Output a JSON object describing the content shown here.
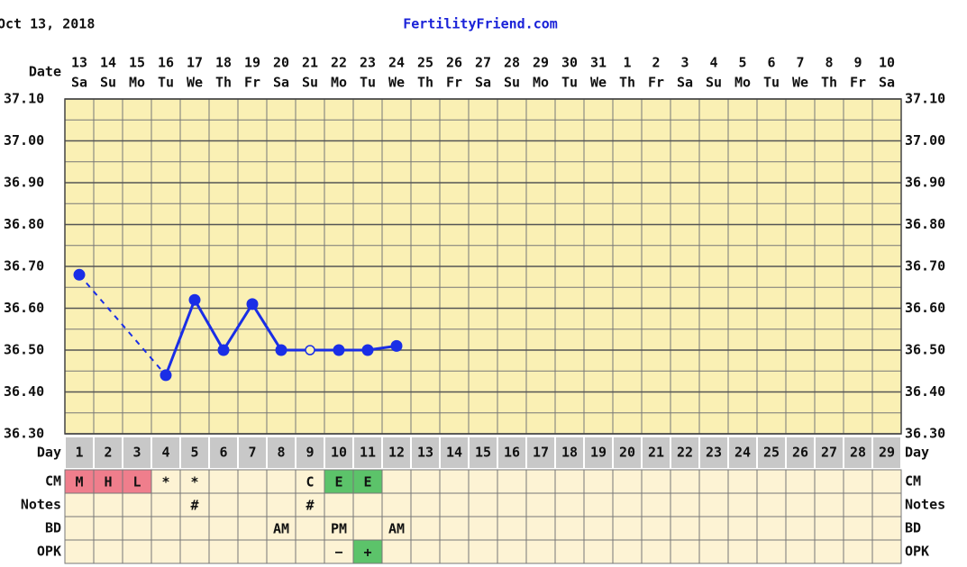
{
  "header": {
    "date": "Oct 13, 2018",
    "site": "FertilityFriend.com"
  },
  "chart_data": {
    "type": "line",
    "x_label": "Date",
    "dates": [
      "13",
      "14",
      "15",
      "16",
      "17",
      "18",
      "19",
      "20",
      "21",
      "22",
      "23",
      "24",
      "25",
      "26",
      "27",
      "28",
      "29",
      "30",
      "31",
      "1",
      "2",
      "3",
      "4",
      "5",
      "6",
      "7",
      "8",
      "9",
      "10"
    ],
    "weekdays": [
      "Sa",
      "Su",
      "Mo",
      "Tu",
      "We",
      "Th",
      "Fr",
      "Sa",
      "Su",
      "Mo",
      "Tu",
      "We",
      "Th",
      "Fr",
      "Sa",
      "Su",
      "Mo",
      "Tu",
      "We",
      "Th",
      "Fr",
      "Sa",
      "Su",
      "Mo",
      "Tu",
      "We",
      "Th",
      "Fr",
      "Sa"
    ],
    "day_label": "Day",
    "days": [
      1,
      2,
      3,
      4,
      5,
      6,
      7,
      8,
      9,
      10,
      11,
      12,
      13,
      14,
      15,
      16,
      17,
      18,
      19,
      20,
      21,
      22,
      23,
      24,
      25,
      26,
      27,
      28,
      29
    ],
    "ylim": [
      36.3,
      37.1
    ],
    "yticks": [
      {
        "value": 36.3,
        "label": "36.30"
      },
      {
        "value": 36.4,
        "label": "36.40"
      },
      {
        "value": 36.5,
        "label": "36.50"
      },
      {
        "value": 36.6,
        "label": "36.60"
      },
      {
        "value": 36.7,
        "label": "36.70"
      },
      {
        "value": 36.8,
        "label": "36.80"
      },
      {
        "value": 36.9,
        "label": "36.90"
      },
      {
        "value": 37.0,
        "label": "37.00"
      },
      {
        "value": 37.1,
        "label": "37.10"
      }
    ],
    "yminorticks": [
      36.35,
      36.45,
      36.55,
      36.65,
      36.75,
      36.85,
      36.95,
      37.05
    ],
    "grid": true,
    "series": [
      {
        "color": "#1a2ee6",
        "values": [
          36.68,
          null,
          null,
          36.44,
          36.62,
          36.5,
          36.61,
          36.5,
          36.5,
          36.5,
          36.5,
          36.51,
          null,
          null,
          null,
          null,
          null,
          null,
          null,
          null,
          null,
          null,
          null,
          null,
          null,
          null,
          null,
          null,
          null
        ]
      }
    ],
    "open_point_days": [
      9
    ],
    "connect_gaps": "dashed",
    "rows": [
      {
        "label": "CM",
        "cells": [
          "M",
          "H",
          "L",
          "*",
          "*",
          null,
          null,
          null,
          "C",
          "E",
          "E",
          null,
          null,
          null,
          null,
          null,
          null,
          null,
          null,
          null,
          null,
          null,
          null,
          null,
          null,
          null,
          null,
          null,
          null
        ]
      },
      {
        "label": "Notes",
        "cells": [
          null,
          null,
          null,
          null,
          "#",
          null,
          null,
          null,
          "#",
          null,
          null,
          null,
          null,
          null,
          null,
          null,
          null,
          null,
          null,
          null,
          null,
          null,
          null,
          null,
          null,
          null,
          null,
          null,
          null
        ]
      },
      {
        "label": "BD",
        "cells": [
          null,
          null,
          null,
          null,
          null,
          null,
          null,
          "AM",
          null,
          "PM",
          null,
          "AM",
          null,
          null,
          null,
          null,
          null,
          null,
          null,
          null,
          null,
          null,
          null,
          null,
          null,
          null,
          null,
          null,
          null
        ]
      },
      {
        "label": "OPK",
        "cells": [
          null,
          null,
          null,
          null,
          null,
          null,
          null,
          null,
          null,
          "−",
          "+",
          null,
          null,
          null,
          null,
          null,
          null,
          null,
          null,
          null,
          null,
          null,
          null,
          null,
          null,
          null,
          null,
          null,
          null
        ]
      }
    ],
    "highlight_colors": {
      "M": "#ef7e8c",
      "H": "#ef7e8c",
      "L": "#ef7e8c",
      "E": "#5cc36a",
      "+": "#5cc36a"
    }
  }
}
